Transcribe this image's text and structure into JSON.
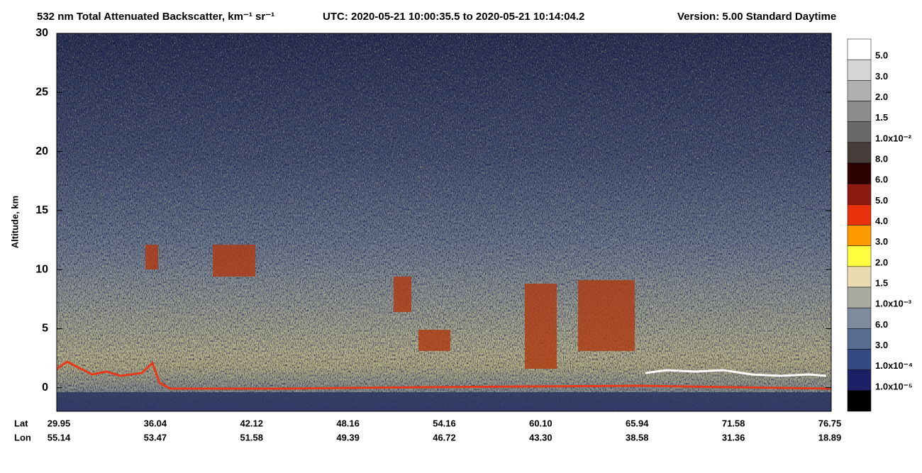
{
  "chart_data": {
    "type": "heatmap",
    "title": "532 nm Total Attenuated Backscatter, km⁻¹ sr⁻¹",
    "subtitle": "UTC:  2020-05-21 10:00:35.5  to  2020-05-21 10:14:04.2",
    "version": "Version: 5.00  Standard  Daytime",
    "ylabel": "Altitude, km",
    "ylim": [
      -2,
      30
    ],
    "yticks": [
      0,
      5,
      10,
      15,
      20,
      25,
      30
    ],
    "x_rows": [
      {
        "name": "Lat",
        "labels": [
          "29.95",
          "36.04",
          "42.12",
          "48.16",
          "54.16",
          "60.10",
          "65.94",
          "71.58",
          "76.75"
        ]
      },
      {
        "name": "Lon",
        "labels": [
          "55.14",
          "53.47",
          "51.58",
          "49.39",
          "46.72",
          "43.30",
          "38.58",
          "31.36",
          "18.89"
        ]
      }
    ],
    "colorbar": {
      "colors": [
        "#ffffff",
        "#d6d6d6",
        "#b0b0b0",
        "#8c8c8c",
        "#686868",
        "#463c3a",
        "#2c0202",
        "#8a1a12",
        "#e8300a",
        "#ff9a00",
        "#ffff40",
        "#eadcb0",
        "#a8aaa0",
        "#7d8c9c",
        "#566c90",
        "#344a80",
        "#1c2066",
        "#000000"
      ],
      "labels": [
        "5.0",
        "3.0",
        "2.0",
        "1.5",
        "1.0x10⁻²",
        "8.0",
        "6.0",
        "5.0",
        "4.0",
        "3.0",
        "2.0",
        "1.5",
        "1.0x10⁻³",
        "6.0",
        "3.0",
        "1.0x10⁻⁴",
        "1.0x10⁻⁵"
      ]
    }
  }
}
